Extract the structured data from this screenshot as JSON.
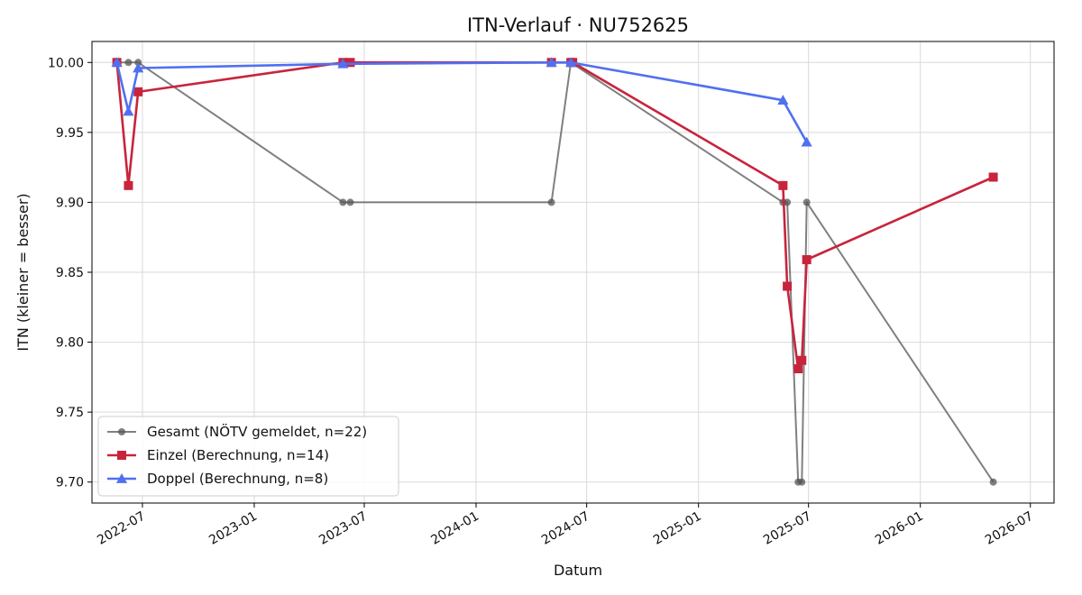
{
  "chart_data": {
    "type": "line",
    "title": "ITN-Verlauf · NU752625",
    "xlabel": "Datum",
    "ylabel": "ITN  (kleiner = besser)",
    "x_type": "date",
    "xlim": [
      "2022-04-09",
      "2026-08-09"
    ],
    "ylim": [
      9.685,
      10.015
    ],
    "y_ticks": [
      10.0,
      9.95,
      9.9,
      9.85,
      9.8,
      9.75,
      9.7
    ],
    "x_ticks": [
      "2022-07",
      "2023-01",
      "2023-07",
      "2024-01",
      "2024-07",
      "2025-01",
      "2025-07",
      "2026-01",
      "2026-07"
    ],
    "grid": true,
    "legend_position": "lower left",
    "series": [
      {
        "name": "Gesamt (NÖTV gemeldet, n=22)",
        "color": "#555555",
        "marker": "circle",
        "points": [
          {
            "x": "2022-05-20",
            "y": 10.0
          },
          {
            "x": "2022-06-08",
            "y": 10.0
          },
          {
            "x": "2022-06-24",
            "y": 10.0
          },
          {
            "x": "2023-05-27",
            "y": 9.9
          },
          {
            "x": "2023-06-08",
            "y": 9.9
          },
          {
            "x": "2024-05-04",
            "y": 9.9
          },
          {
            "x": "2024-06-05",
            "y": 10.0
          },
          {
            "x": "2025-05-20",
            "y": 9.9
          },
          {
            "x": "2025-05-27",
            "y": 9.9
          },
          {
            "x": "2025-06-14",
            "y": 9.7
          },
          {
            "x": "2025-06-20",
            "y": 9.7
          },
          {
            "x": "2025-06-28",
            "y": 9.9
          },
          {
            "x": "2026-05-01",
            "y": 9.7
          }
        ]
      },
      {
        "name": "Einzel (Berechnung, n=14)",
        "color": "#c8243c",
        "marker": "square",
        "points": [
          {
            "x": "2022-05-20",
            "y": 10.0
          },
          {
            "x": "2022-06-08",
            "y": 9.912
          },
          {
            "x": "2022-06-24",
            "y": 9.979
          },
          {
            "x": "2023-05-27",
            "y": 10.0
          },
          {
            "x": "2023-06-08",
            "y": 10.0
          },
          {
            "x": "2024-05-04",
            "y": 10.0
          },
          {
            "x": "2024-06-05",
            "y": 10.0
          },
          {
            "x": "2024-06-08",
            "y": 10.0
          },
          {
            "x": "2025-05-20",
            "y": 9.912
          },
          {
            "x": "2025-05-27",
            "y": 9.84
          },
          {
            "x": "2025-06-14",
            "y": 9.781
          },
          {
            "x": "2025-06-20",
            "y": 9.787
          },
          {
            "x": "2025-06-28",
            "y": 9.859
          },
          {
            "x": "2026-05-01",
            "y": 9.918
          }
        ]
      },
      {
        "name": "Doppel (Berechnung, n=8)",
        "color": "#5170f0",
        "marker": "triangle",
        "points": [
          {
            "x": "2022-05-20",
            "y": 10.0
          },
          {
            "x": "2022-06-08",
            "y": 9.965
          },
          {
            "x": "2022-06-24",
            "y": 9.996
          },
          {
            "x": "2023-05-27",
            "y": 9.999
          },
          {
            "x": "2024-05-04",
            "y": 10.0
          },
          {
            "x": "2024-06-05",
            "y": 10.0
          },
          {
            "x": "2025-05-20",
            "y": 9.973
          },
          {
            "x": "2025-06-28",
            "y": 9.943
          }
        ]
      }
    ]
  }
}
